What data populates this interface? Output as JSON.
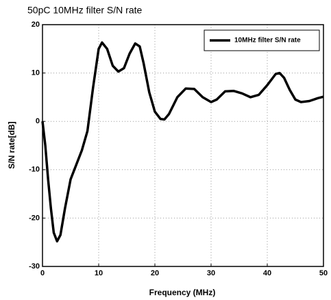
{
  "chart_data": {
    "type": "line",
    "title": "50pC 10MHz filter S/N rate",
    "x_label": "Frequency (MHz)",
    "y_label": "S/N rate[dB]",
    "x": [
      0,
      0.5,
      1,
      1.5,
      2,
      2.6,
      3.2,
      4,
      5,
      6,
      7,
      8,
      9,
      10,
      10.6,
      11.5,
      12.5,
      13.5,
      14.5,
      15.5,
      16.5,
      17.3,
      18,
      19,
      20,
      21,
      21.7,
      22.5,
      24,
      25.5,
      27,
      28.5,
      30,
      31,
      32.5,
      34,
      35.5,
      37,
      38.5,
      40,
      41.5,
      42.2,
      43,
      44,
      45,
      46,
      47.5,
      49,
      50
    ],
    "series": [
      {
        "name": "10MHz filter S/N rate",
        "color": "#000000",
        "values": [
          0,
          -5,
          -12,
          -18,
          -23,
          -24.8,
          -23.5,
          -18,
          -12,
          -9,
          -6,
          -2,
          7,
          15,
          16.3,
          15,
          11.5,
          10.3,
          11,
          14,
          16.1,
          15.5,
          12,
          6,
          2,
          0.5,
          0.4,
          1.5,
          5,
          6.8,
          6.7,
          5,
          4,
          4.5,
          6.2,
          6.3,
          5.8,
          5,
          5.5,
          7.5,
          9.8,
          10,
          9,
          6.5,
          4.5,
          4,
          4.2,
          4.8,
          5.1
        ]
      }
    ],
    "xlim": [
      0,
      50
    ],
    "xticks": [
      0,
      10,
      20,
      30,
      40,
      50
    ],
    "ylim": [
      -30,
      20
    ],
    "yticks": [
      -30,
      -20,
      -10,
      0,
      10,
      20
    ],
    "grid": true,
    "legend": "upper right"
  }
}
